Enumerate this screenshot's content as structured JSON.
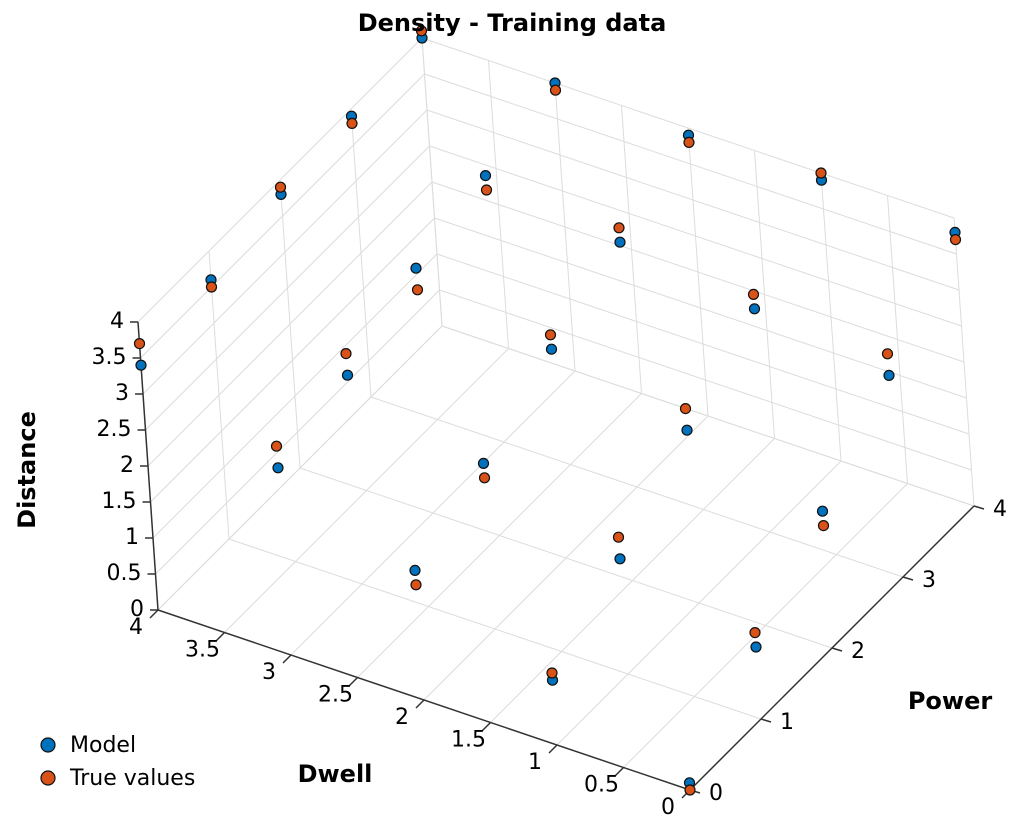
{
  "chart_data": {
    "type": "scatter3d",
    "title": "Density - Training data",
    "xlabel": "Dwell",
    "ylabel": "Power",
    "zlabel": "Distance",
    "xlim": [
      0,
      4
    ],
    "ylim": [
      0,
      4
    ],
    "zlim": [
      0,
      4
    ],
    "xticks": [
      0,
      0.5,
      1,
      1.5,
      2,
      2.5,
      3,
      3.5,
      4
    ],
    "yticks": [
      0,
      1,
      2,
      3,
      4
    ],
    "zticks": [
      0,
      0.5,
      1,
      1.5,
      2,
      2.5,
      3,
      3.5,
      4
    ],
    "grid": true,
    "legend": "lower left",
    "series": [
      {
        "name": "Model",
        "color": "#0072bd",
        "x": [
          0,
          1,
          2,
          3,
          4,
          0,
          1,
          2,
          3,
          4,
          0,
          1,
          2,
          3,
          4,
          0,
          1,
          2,
          3,
          4,
          0,
          1,
          2,
          3,
          4
        ],
        "y": [
          0,
          0,
          0,
          0,
          0,
          1,
          1,
          1,
          1,
          1,
          2,
          2,
          2,
          2,
          2,
          3,
          3,
          3,
          3,
          3,
          4,
          4,
          4,
          4,
          4
        ],
        "z": [
          0.1,
          0.9,
          1.8,
          2.6,
          3.4,
          1.0,
          1.6,
          2.3,
          2.9,
          3.6,
          1.9,
          2.4,
          2.9,
          3.4,
          3.8,
          2.8,
          3.1,
          3.4,
          3.7,
          3.9,
          3.8,
          3.9,
          3.9,
          4.0,
          4.0
        ]
      },
      {
        "name": "True values",
        "color": "#d95319",
        "x": [
          0,
          1,
          2,
          3,
          4,
          0,
          1,
          2,
          3,
          4,
          0,
          1,
          2,
          3,
          4,
          0,
          1,
          2,
          3,
          4,
          0,
          1,
          2,
          3,
          4
        ],
        "y": [
          0,
          0,
          0,
          0,
          0,
          1,
          1,
          1,
          1,
          1,
          2,
          2,
          2,
          2,
          2,
          3,
          3,
          3,
          3,
          3,
          4,
          4,
          4,
          4,
          4
        ],
        "z": [
          0.0,
          1.0,
          1.6,
          2.9,
          3.7,
          1.2,
          1.9,
          2.1,
          3.2,
          3.5,
          1.7,
          2.7,
          3.1,
          3.1,
          3.9,
          3.1,
          3.3,
          3.6,
          3.5,
          3.8,
          3.7,
          4.0,
          3.8,
          3.9,
          4.1
        ]
      }
    ]
  }
}
